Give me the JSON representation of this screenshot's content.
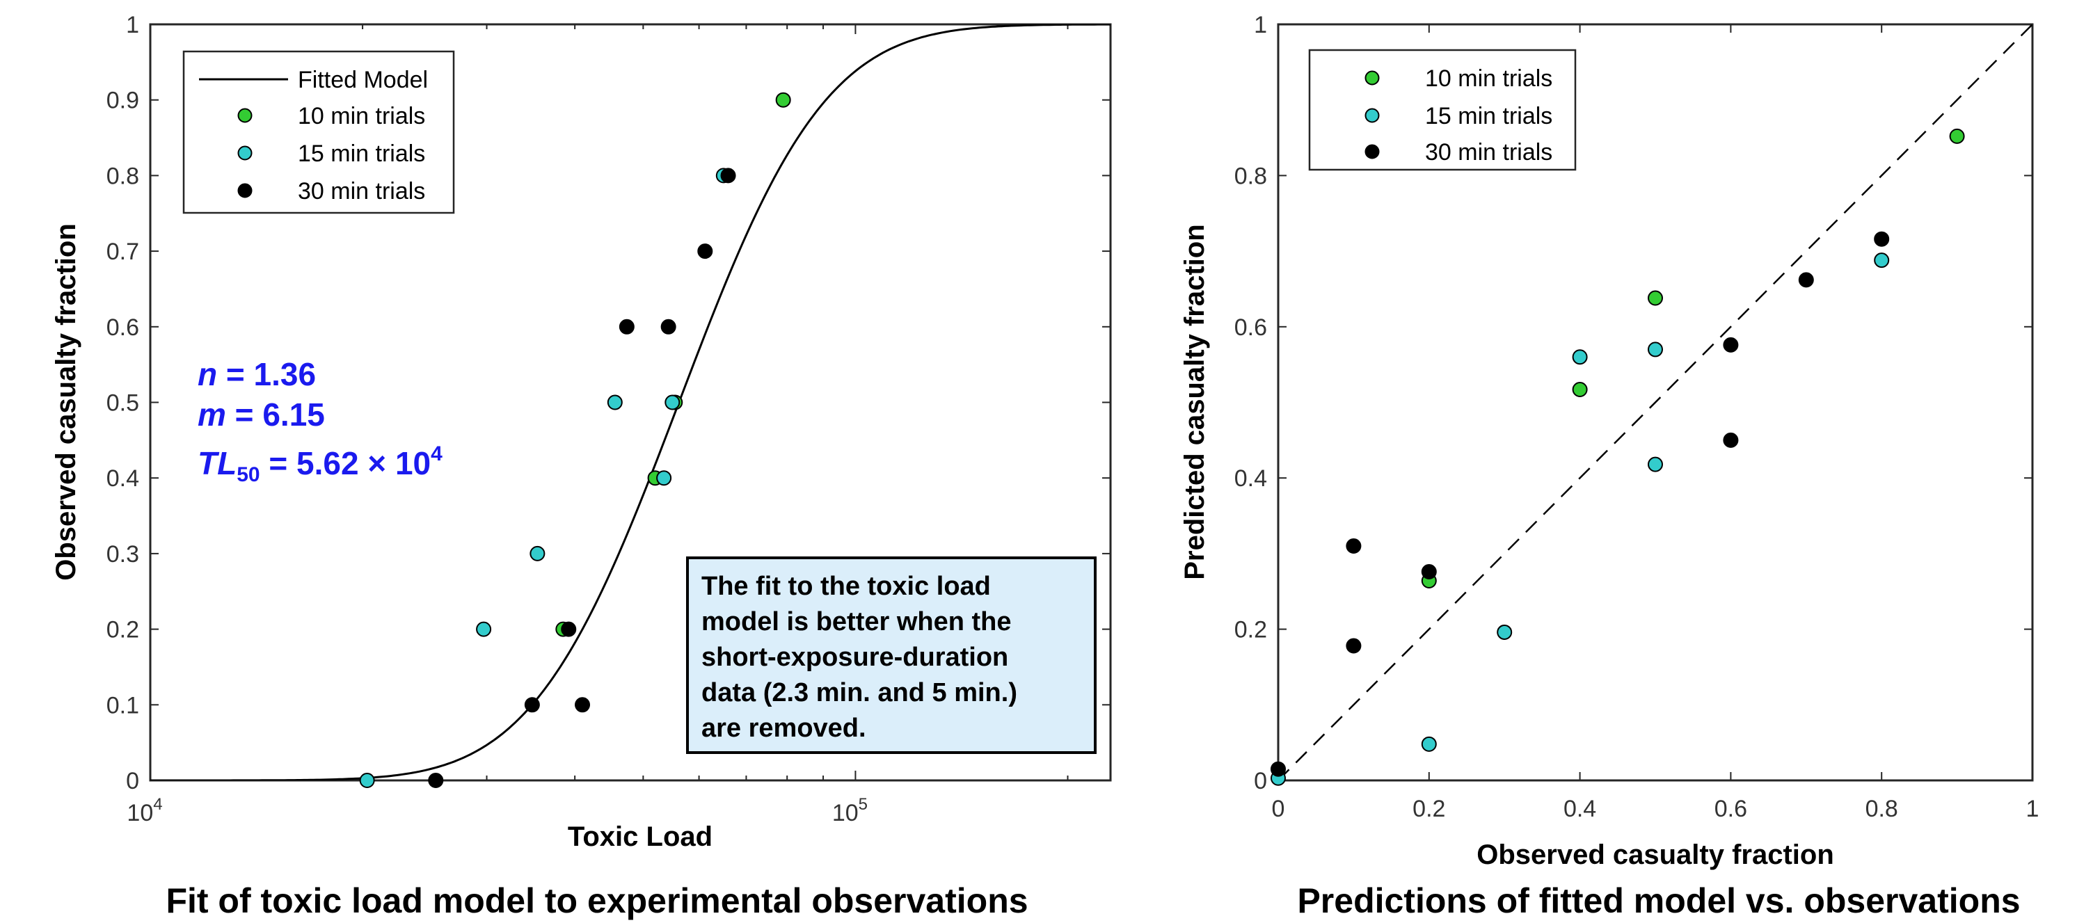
{
  "chart_data": [
    {
      "type": "scatter",
      "title": "Fit of toxic load model to experimental observations",
      "xlabel": "Toxic Load",
      "ylabel": "Observed casualty fraction",
      "x_scale": "log",
      "xlim": [
        10000,
        230000
      ],
      "ylim": [
        0,
        1
      ],
      "x_ticks": [
        {
          "value": 10000,
          "base": "10",
          "exp": "4"
        },
        {
          "value": 100000,
          "base": "10",
          "exp": "5"
        }
      ],
      "y_ticks": [
        "0",
        "0.1",
        "0.2",
        "0.3",
        "0.4",
        "0.5",
        "0.6",
        "0.7",
        "0.8",
        "0.9",
        "1"
      ],
      "legend_position": "top-left",
      "fit": {
        "name": "Fitted Model",
        "n": 1.36,
        "m": 6.15,
        "tl50": 56200
      },
      "parameters": {
        "n_label": "n",
        "n_value": " = 1.36",
        "m_label": "m",
        "m_value": " = 6.15",
        "tl_label": "TL",
        "tl_sub": "50",
        "tl_value": " = 5.62 × 10",
        "tl_exp": "4"
      },
      "note_lines": [
        "The fit to the toxic load",
        "model is better when the",
        "short-exposure-duration",
        "data (2.3 min. and 5 min.)",
        "are removed."
      ],
      "series": [
        {
          "name": "10 min trials",
          "color": "#33cc33",
          "points": [
            [
              79000,
              0.9
            ],
            [
              55500,
              0.5
            ],
            [
              52000,
              0.4
            ],
            [
              38500,
              0.2
            ]
          ]
        },
        {
          "name": "15 min trials",
          "color": "#33cccc",
          "points": [
            [
              20300,
              0
            ],
            [
              29700,
              0.2
            ],
            [
              35400,
              0.3
            ],
            [
              45600,
              0.5
            ],
            [
              53500,
              0.4
            ],
            [
              55000,
              0.5
            ],
            [
              65000,
              0.8
            ]
          ]
        },
        {
          "name": "30 min trials",
          "color": "#000000",
          "points": [
            [
              25400,
              0
            ],
            [
              34800,
              0.1
            ],
            [
              39200,
              0.2
            ],
            [
              41000,
              0.1
            ],
            [
              47400,
              0.6
            ],
            [
              54300,
              0.6
            ],
            [
              61200,
              0.7
            ],
            [
              66000,
              0.8
            ]
          ]
        }
      ]
    },
    {
      "type": "scatter",
      "title": "Predictions of fitted model vs. observations",
      "xlabel": "Observed casualty fraction",
      "ylabel": "Predicted casualty fraction",
      "xlim": [
        0,
        1
      ],
      "ylim": [
        0,
        1
      ],
      "x_ticks": [
        "0",
        "0.2",
        "0.4",
        "0.6",
        "0.8",
        "1"
      ],
      "y_ticks": [
        "0",
        "0.2",
        "0.4",
        "0.6",
        "0.8",
        "1"
      ],
      "legend_position": "top-left",
      "reference_line": "y = x",
      "series": [
        {
          "name": "10 min trials",
          "color": "#33cc33",
          "points": [
            [
              0.9,
              0.852
            ],
            [
              0.5,
              0.638
            ],
            [
              0.4,
              0.517
            ],
            [
              0.2,
              0.264
            ]
          ]
        },
        {
          "name": "15 min trials",
          "color": "#33cccc",
          "points": [
            [
              0,
              0.003
            ],
            [
              0.2,
              0.048
            ],
            [
              0.3,
              0.196
            ],
            [
              0.4,
              0.56
            ],
            [
              0.5,
              0.57
            ],
            [
              0.5,
              0.418
            ],
            [
              0.8,
              0.688
            ]
          ]
        },
        {
          "name": "30 min trials",
          "color": "#000000",
          "points": [
            [
              0,
              0.015
            ],
            [
              0.1,
              0.31
            ],
            [
              0.1,
              0.178
            ],
            [
              0.2,
              0.276
            ],
            [
              0.6,
              0.576
            ],
            [
              0.6,
              0.45
            ],
            [
              0.7,
              0.662
            ],
            [
              0.8,
              0.716
            ]
          ]
        }
      ]
    }
  ]
}
